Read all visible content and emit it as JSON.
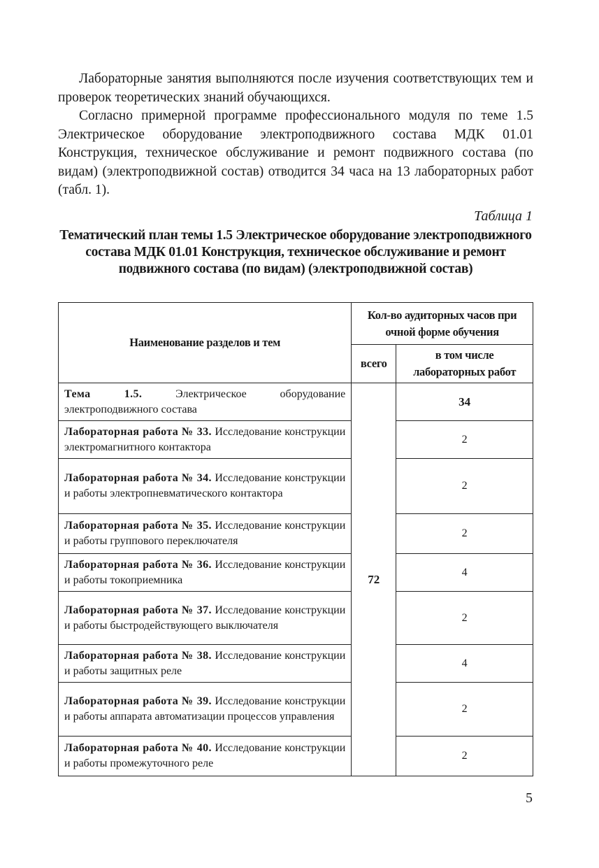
{
  "paragraphs": [
    "Лабораторные занятия выполняются после изучения соответствующих тем и проверок теоретических знаний обучающихся.",
    "Согласно примерной программе профессионального модуля по теме 1.5 Электрическое оборудование электроподвижного состава МДК 01.01 Конструкция, техническое обслуживание и ремонт подвижного состава (по видам) (электроподвижной состав) отводится 34 часа на 13 лабораторных работ (табл. 1)."
  ],
  "table": {
    "label": "Таблица 1",
    "title": "Тематический план темы 1.5 Электрическое оборудование электроподвижного состава МДК 01.01 Конструкция, техническое обслуживание и ремонт подвижного состава (по видам) (электроподвижной состав)",
    "headers": {
      "name": "Наименование разделов и тем",
      "hours": "Кол-во аудиторных часов при очной форме обучения",
      "total": "всего",
      "lab": "в том числе лабораторных работ"
    },
    "total_hours": "72",
    "rows": [
      {
        "bold": "Тема 1.5.",
        "text": " Электрическое оборудование электроподвижного состава",
        "lab": "34"
      },
      {
        "bold": "Лабораторная работа № 33.",
        "text": " Исследование конструкции электромагнитного контактора",
        "lab": "2"
      },
      {
        "bold": "Лабораторная работа № 34.",
        "text": " Исследование конструкции и работы электропневматического контактора",
        "lab": "2"
      },
      {
        "bold": "Лабораторная работа № 35.",
        "text": " Исследование конструкции и работы группового переключателя",
        "lab": "2"
      },
      {
        "bold": "Лабораторная работа № 36.",
        "text": " Исследование конструкции и работы токоприемника",
        "lab": "4"
      },
      {
        "bold": "Лабораторная работа № 37.",
        "text": " Исследование конструкции и работы быстродействующего выключателя",
        "lab": "2"
      },
      {
        "bold": "Лабораторная работа № 38.",
        "text": " Исследование конструкции и работы защитных реле",
        "lab": "4"
      },
      {
        "bold": "Лабораторная работа № 39.",
        "text": " Исследование конструкции и работы аппарата автоматизации процессов управления",
        "lab": "2"
      },
      {
        "bold": "Лабораторная работа № 40.",
        "text": " Исследование конструкции и работы промежуточного реле",
        "lab": "2"
      }
    ]
  },
  "page_number": "5"
}
